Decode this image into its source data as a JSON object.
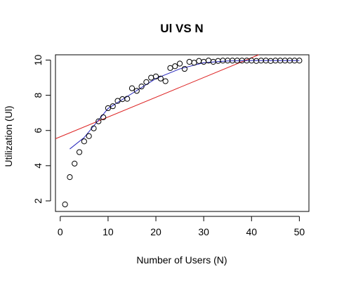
{
  "chart_data": {
    "type": "scatter",
    "title": "Ul VS N",
    "xlabel": "Number of Users (N)",
    "ylabel": "Utilization (Ul)",
    "xlim": [
      -1,
      52
    ],
    "ylim": [
      1.4,
      10.3
    ],
    "x_ticks": [
      0,
      10,
      20,
      30,
      40,
      50
    ],
    "y_ticks": [
      2,
      4,
      6,
      8,
      10
    ],
    "grid": false,
    "legend": "none",
    "colors": {
      "points": "#000000",
      "linear_fit": "#dd2222",
      "smooth_curve": "#2222bb",
      "axis": "#000000"
    },
    "points": {
      "x": [
        1,
        2,
        3,
        4,
        5,
        6,
        7,
        8,
        9,
        10,
        11,
        12,
        13,
        14,
        15,
        16,
        17,
        18,
        19,
        20,
        21,
        22,
        23,
        24,
        25,
        26,
        27,
        28,
        29,
        30,
        31,
        32,
        33,
        34,
        35,
        36,
        37,
        38,
        39,
        40,
        41,
        42,
        43,
        44,
        45,
        46,
        47,
        48,
        49,
        50
      ],
      "y": [
        1.8,
        3.35,
        4.12,
        4.77,
        5.38,
        5.68,
        6.12,
        6.52,
        6.75,
        7.27,
        7.38,
        7.68,
        7.78,
        7.8,
        8.4,
        8.25,
        8.5,
        8.75,
        9.0,
        9.07,
        8.95,
        8.8,
        9.55,
        9.65,
        9.8,
        9.5,
        9.9,
        9.85,
        9.95,
        9.9,
        9.97,
        9.9,
        9.95,
        9.97,
        9.97,
        9.97,
        9.97,
        9.97,
        9.97,
        9.97,
        9.95,
        9.97,
        9.97,
        9.95,
        9.97,
        9.97,
        9.97,
        9.97,
        9.97,
        9.97
      ]
    },
    "linear_fit": {
      "x": [
        -1,
        41.5
      ],
      "y": [
        5.53,
        10.3
      ]
    },
    "smooth_curve": {
      "x": [
        2,
        5,
        10,
        15,
        20,
        25,
        30,
        35,
        40,
        45,
        50
      ],
      "y": [
        4.95,
        5.6,
        7.25,
        8.1,
        8.95,
        9.5,
        9.85,
        9.95,
        9.97,
        9.97,
        9.97
      ]
    }
  }
}
